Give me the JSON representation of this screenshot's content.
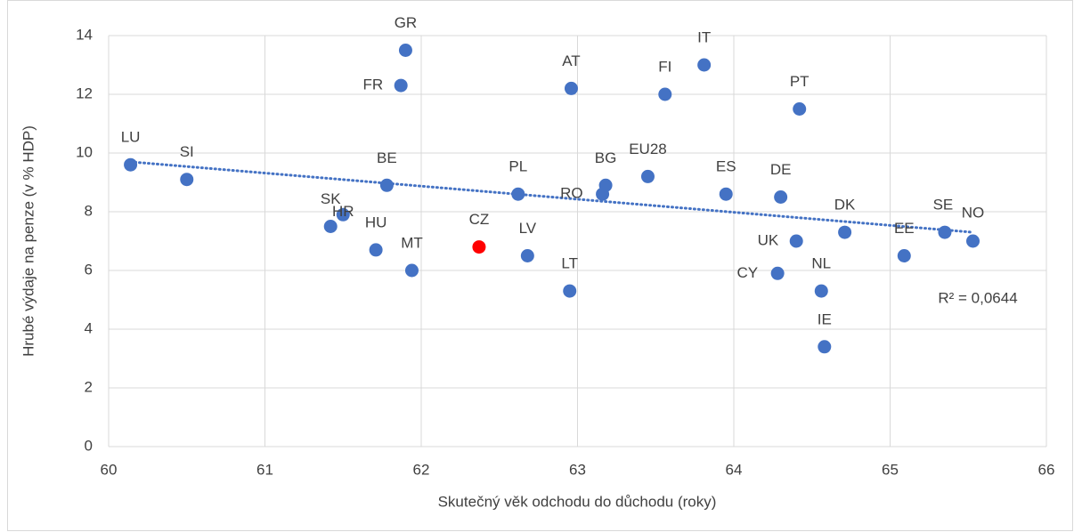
{
  "chart_data": {
    "type": "scatter",
    "x_label": "Skutečný věk odchodu do důchodu (roky)",
    "y_label": "Hrubé výdaje na penze (v % HDP)",
    "point_labels": [
      "LU",
      "SI",
      "SK",
      "HR",
      "HU",
      "BE",
      "FR",
      "GR",
      "MT",
      "CZ",
      "PL",
      "LV",
      "LT",
      "AT",
      "RO",
      "BG",
      "EU28",
      "FI",
      "IT",
      "ES",
      "CY",
      "DE",
      "UK",
      "PT",
      "NL",
      "IE",
      "DK",
      "EE",
      "SE",
      "NO"
    ],
    "x": [
      60.14,
      60.5,
      61.42,
      61.5,
      61.71,
      61.78,
      61.87,
      61.9,
      61.94,
      62.37,
      62.62,
      62.68,
      62.95,
      62.96,
      63.16,
      63.18,
      63.45,
      63.56,
      63.81,
      63.95,
      64.28,
      64.3,
      64.4,
      64.42,
      64.56,
      64.58,
      64.71,
      65.09,
      65.35,
      65.53
    ],
    "series": [
      {
        "values": [
          9.6,
          9.1,
          7.5,
          7.9,
          6.7,
          8.9,
          12.3,
          13.5,
          6.0,
          6.8,
          8.6,
          6.5,
          5.3,
          12.2,
          8.6,
          8.9,
          9.2,
          12.0,
          13.0,
          8.6,
          5.9,
          8.5,
          7.0,
          11.5,
          5.3,
          3.4,
          7.3,
          6.5,
          7.3,
          7.0
        ],
        "colors": [
          "#4472c4",
          "#4472c4",
          "#4472c4",
          "#4472c4",
          "#4472c4",
          "#4472c4",
          "#4472c4",
          "#4472c4",
          "#4472c4",
          "#ff0000",
          "#4472c4",
          "#4472c4",
          "#4472c4",
          "#4472c4",
          "#4472c4",
          "#4472c4",
          "#4472c4",
          "#4472c4",
          "#4472c4",
          "#4472c4",
          "#4472c4",
          "#4472c4",
          "#4472c4",
          "#4472c4",
          "#4472c4",
          "#4472c4",
          "#4472c4",
          "#4472c4",
          "#4472c4",
          "#4472c4"
        ]
      }
    ],
    "trendline": {
      "x": [
        60.14,
        65.53
      ],
      "values": [
        9.7,
        7.3
      ],
      "color": "#4472c4",
      "label": "R² = 0,0644"
    },
    "xlim": [
      60,
      66
    ],
    "xticks": [
      60,
      61,
      62,
      63,
      64,
      65,
      66
    ],
    "ylim": [
      0,
      14
    ],
    "yticks": [
      0,
      2,
      4,
      6,
      8,
      10,
      12,
      14
    ],
    "grid": true
  }
}
